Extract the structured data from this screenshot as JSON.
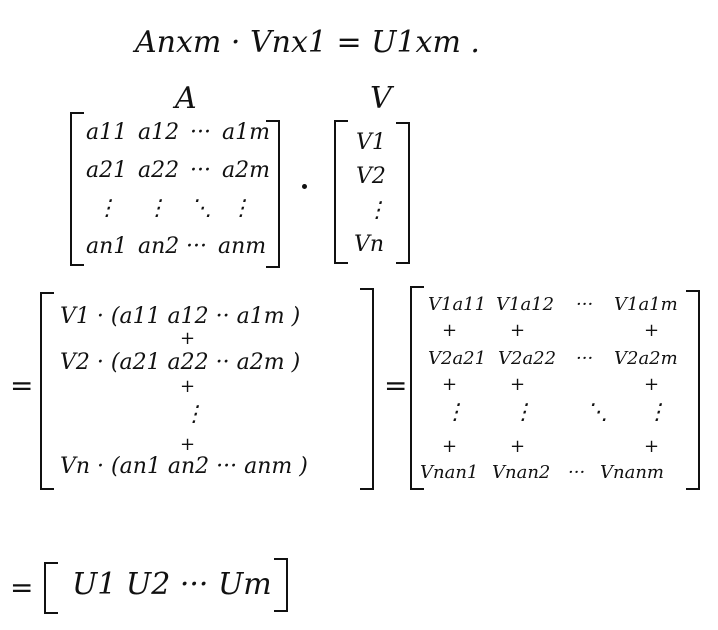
{
  "equation": "Anxm · Vnx1 = U1xm .",
  "labels": {
    "A": "A",
    "V": "V"
  },
  "matrix_A": {
    "rows": [
      [
        "a11",
        "a12",
        "···",
        "a1m"
      ],
      [
        "a21",
        "a22",
        "···",
        "a2m"
      ],
      [
        "⋮",
        "⋮",
        "⋱",
        "⋮"
      ],
      [
        "an1",
        "an2",
        "···",
        "anm"
      ]
    ]
  },
  "vector_V": {
    "rows": [
      "V1",
      "V2",
      "⋮",
      "Vn"
    ]
  },
  "step2": {
    "equals": "=",
    "rows": [
      "V1 · (a11  a12  ··  a1m )",
      "V2 · (a21  a22  ··  a2m )",
      "Vn · (an1  an2  ···  anm )"
    ],
    "plus": "+",
    "vdots": "⋮"
  },
  "step3": {
    "equals": "=",
    "rows": [
      [
        "V1a11",
        "V1a12",
        "···",
        "V1a1m"
      ],
      [
        "+",
        "+",
        "",
        "+"
      ],
      [
        "V2a21",
        "V2a22",
        "···",
        "V2a2m"
      ],
      [
        "+",
        "+",
        "",
        "+"
      ],
      [
        "⋮",
        "⋮",
        "⋱",
        "⋮"
      ],
      [
        "+",
        "+",
        "",
        "+"
      ],
      [
        "Vnan1",
        "Vnan2",
        "···",
        "Vnanm"
      ]
    ]
  },
  "result": {
    "equals": "=",
    "row": "U1  U2  ···  Um"
  }
}
